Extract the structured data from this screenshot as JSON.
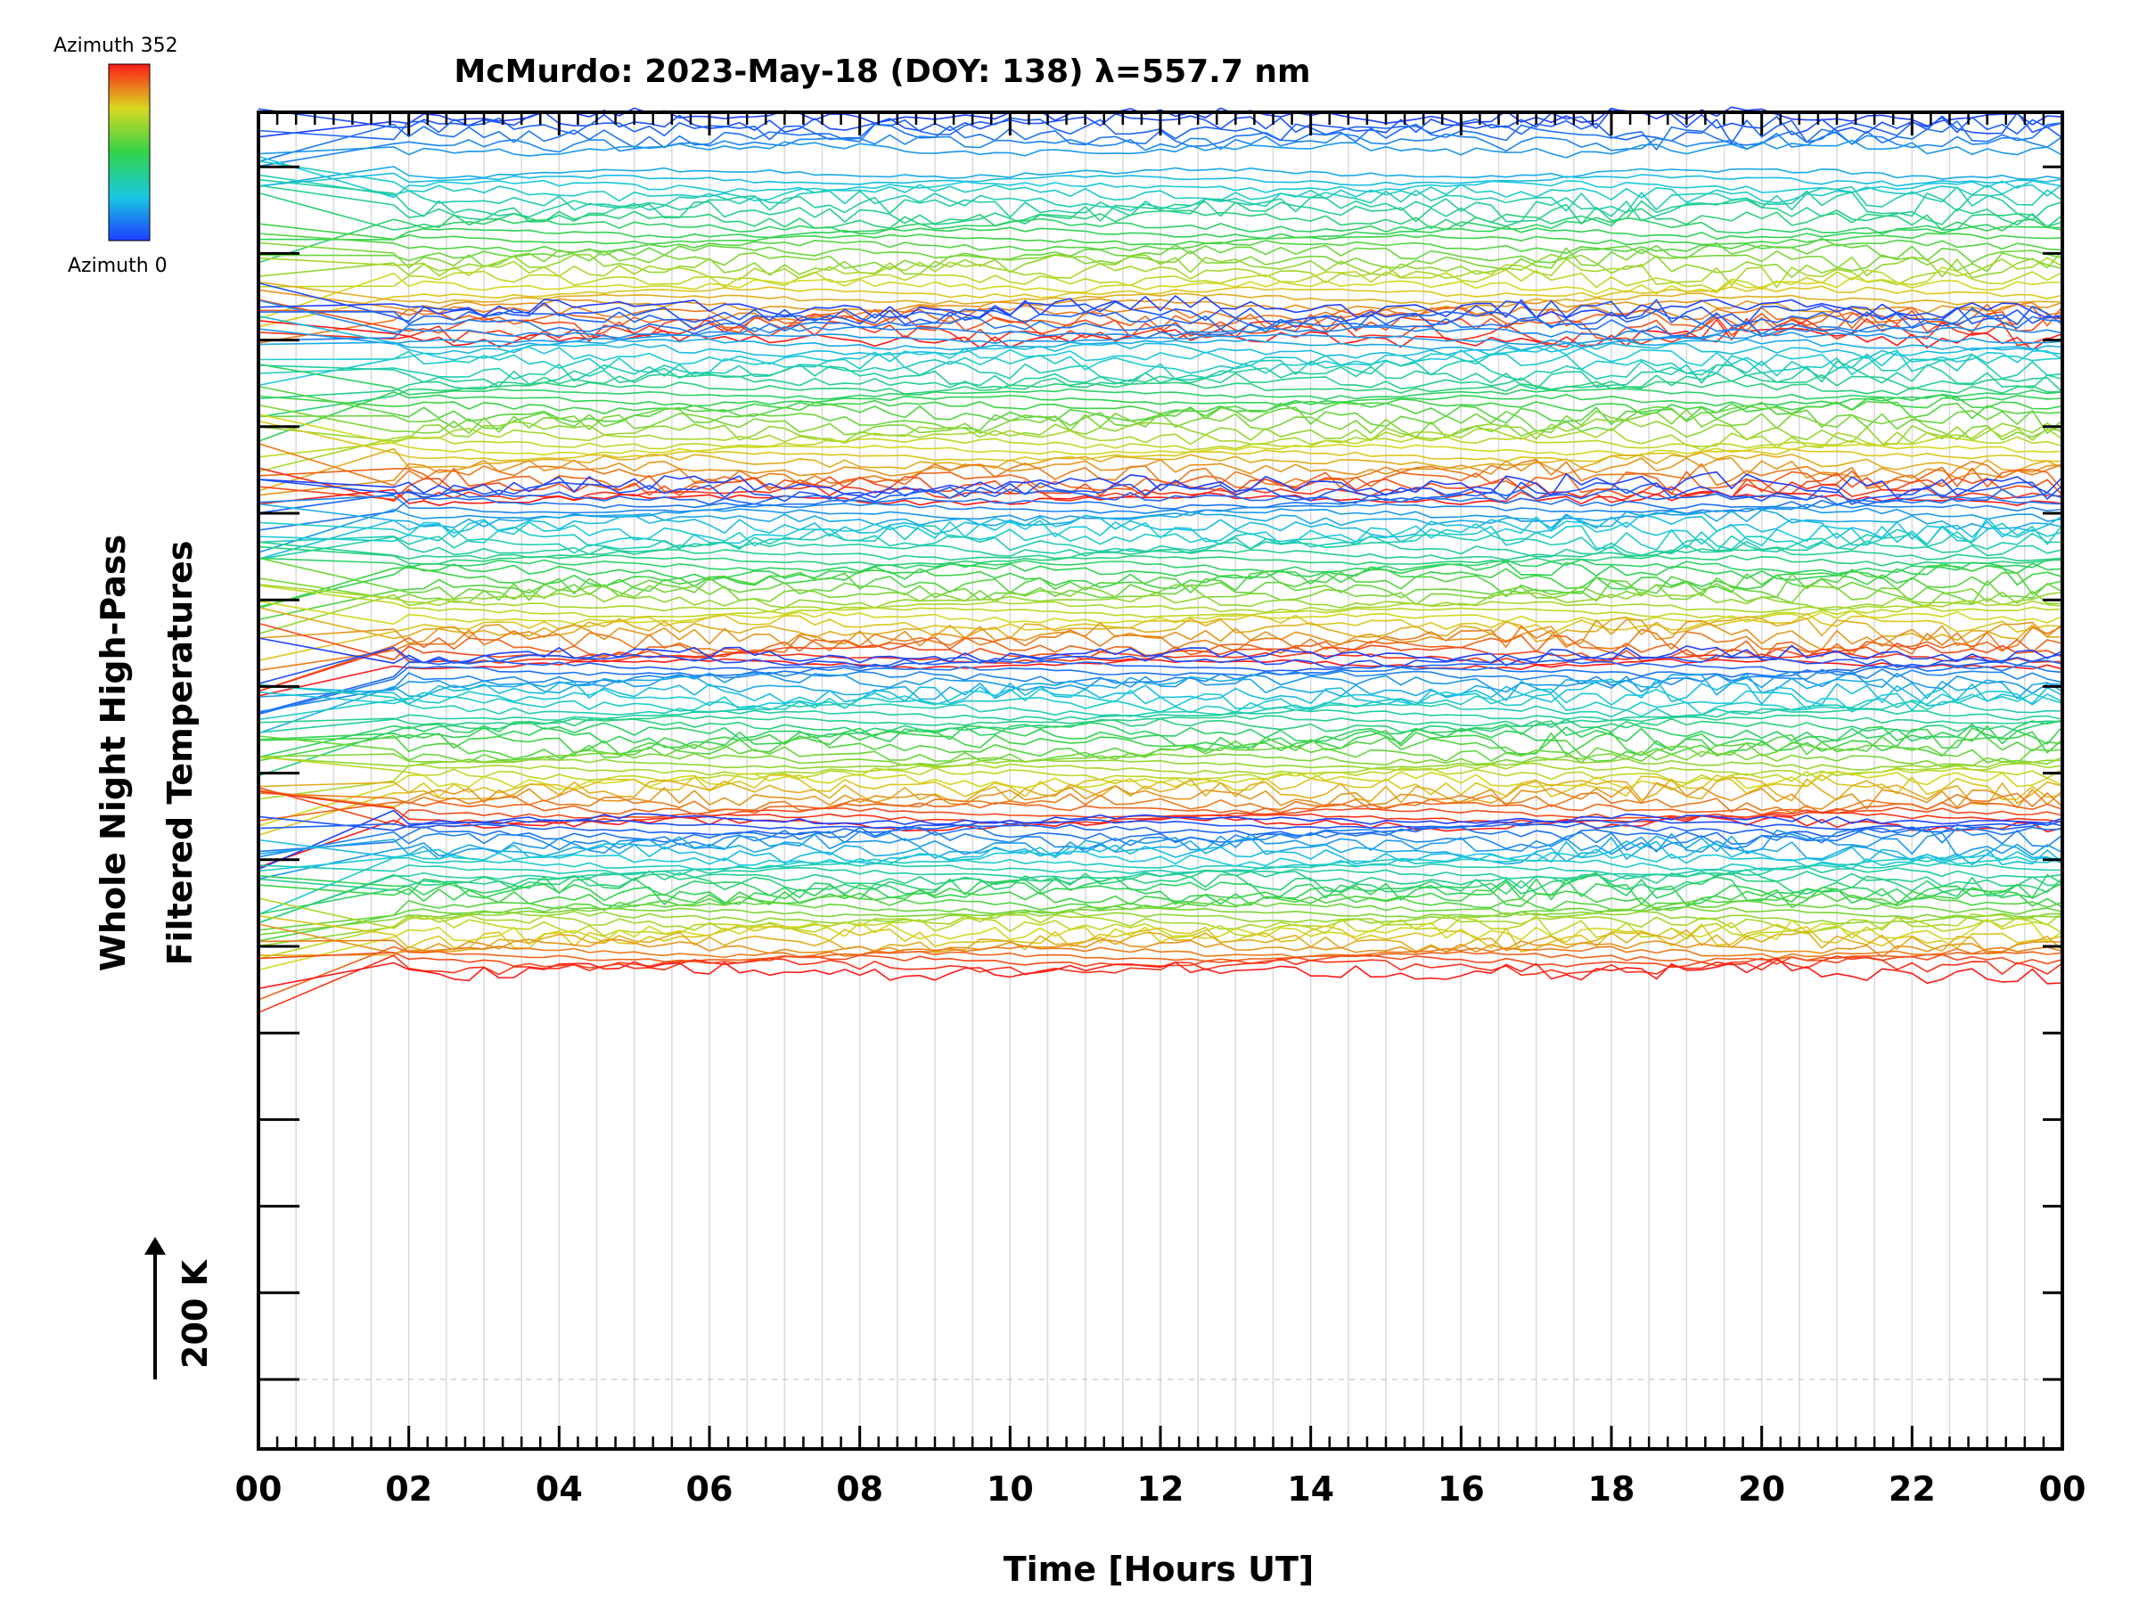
{
  "chart_data": {
    "type": "line",
    "title": "McMurdo: 2023-May-18 (DOY: 138) λ=557.7 nm",
    "xlabel": "Time [Hours UT]",
    "ylabel_line1": "Whole Night High-Pass",
    "ylabel_line2": "Filtered Temperatures",
    "scale_label": "200 K",
    "x_ticks": [
      "00",
      "02",
      "04",
      "06",
      "08",
      "10",
      "12",
      "14",
      "16",
      "18",
      "20",
      "22",
      "00"
    ],
    "xlim": [
      0,
      24
    ],
    "colorbar": {
      "max_label": "Azimuth 352",
      "min_label": "Azimuth 0",
      "colormap": "rainbow",
      "range": [
        0,
        352
      ]
    },
    "grid": true,
    "legend": "none",
    "num_series": 160,
    "num_groups": 5,
    "series_per_group": 32,
    "sample_interval_hours": 0.2,
    "note_series": "stacked high-pass filtered temperature traces, one per azimuth bin, coloured by azimuth"
  }
}
